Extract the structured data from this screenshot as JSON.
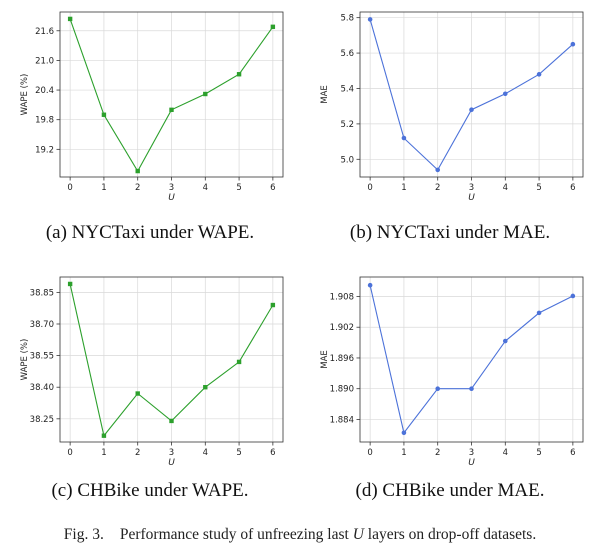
{
  "figure": {
    "number": "Fig. 3.",
    "text_before": "Performance study of unfreezing last ",
    "variable": "U",
    "text_after": " layers on drop-off datasets."
  },
  "chart_data": [
    {
      "id": "a",
      "type": "line",
      "title": "(a) NYCTaxi under WAPE.",
      "xlabel": "U",
      "ylabel": "WAPE (%)",
      "x": [
        0,
        1,
        2,
        3,
        4,
        5,
        6
      ],
      "values": [
        21.84,
        19.9,
        18.76,
        20.0,
        20.32,
        20.72,
        21.68
      ],
      "xticks": [
        "0",
        "1",
        "2",
        "3",
        "4",
        "5",
        "6"
      ],
      "yticks": [
        19.2,
        19.8,
        20.4,
        21.0,
        21.6
      ],
      "ytick_labels": [
        "19.2",
        "19.8",
        "20.4",
        "21.0",
        "21.6"
      ],
      "ylim": [
        18.64,
        21.98
      ],
      "color": "#2ca02c",
      "marker": "square",
      "grid": true
    },
    {
      "id": "b",
      "type": "line",
      "title": "(b) NYCTaxi under MAE.",
      "xlabel": "U",
      "ylabel": "MAE",
      "x": [
        0,
        1,
        2,
        3,
        4,
        5,
        6
      ],
      "values": [
        5.79,
        5.12,
        4.94,
        5.28,
        5.37,
        5.48,
        5.65
      ],
      "xticks": [
        "0",
        "1",
        "2",
        "3",
        "4",
        "5",
        "6"
      ],
      "yticks": [
        5.0,
        5.2,
        5.4,
        5.6,
        5.8
      ],
      "ytick_labels": [
        "5.0",
        "5.2",
        "5.4",
        "5.6",
        "5.8"
      ],
      "ylim": [
        4.9,
        5.832
      ],
      "color": "#4c72d9",
      "marker": "circle",
      "grid": true
    },
    {
      "id": "c",
      "type": "line",
      "title": "(c) CHBike under WAPE.",
      "xlabel": "U",
      "ylabel": "WAPE (%)",
      "x": [
        0,
        1,
        2,
        3,
        4,
        5,
        6
      ],
      "values": [
        38.89,
        38.17,
        38.37,
        38.24,
        38.4,
        38.52,
        38.79
      ],
      "xticks": [
        "0",
        "1",
        "2",
        "3",
        "4",
        "5",
        "6"
      ],
      "yticks": [
        38.25,
        38.4,
        38.55,
        38.7,
        38.85
      ],
      "ytick_labels": [
        "38.25",
        "38.40",
        "38.55",
        "38.70",
        "38.85"
      ],
      "ylim": [
        38.14,
        38.923
      ],
      "color": "#2ca02c",
      "marker": "square",
      "grid": true
    },
    {
      "id": "d",
      "type": "line",
      "title": "(d) CHBike under MAE.",
      "xlabel": "U",
      "ylabel": "MAE",
      "x": [
        0,
        1,
        2,
        3,
        4,
        5,
        6
      ],
      "values": [
        1.9102,
        1.8814,
        1.89,
        1.89,
        1.8993,
        1.9048,
        1.9081
      ],
      "xticks": [
        "0",
        "1",
        "2",
        "3",
        "4",
        "5",
        "6"
      ],
      "yticks": [
        1.884,
        1.89,
        1.896,
        1.902,
        1.908
      ],
      "ytick_labels": [
        "1.884",
        "1.890",
        "1.896",
        "1.902",
        "1.908"
      ],
      "ylim": [
        1.8796,
        1.9118
      ],
      "color": "#4c72d9",
      "marker": "circle",
      "grid": true
    }
  ]
}
